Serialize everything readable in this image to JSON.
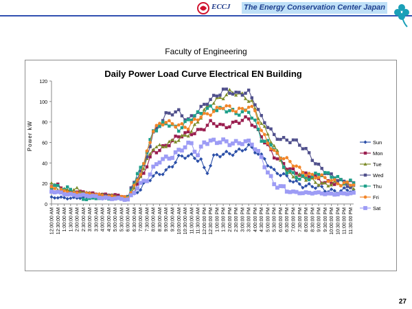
{
  "header": {
    "brand": "ECCJ",
    "organization": "The Energy Conservation Center Japan",
    "logo_icon": "eccj-logo-icon",
    "clover_icon": "clover-icon"
  },
  "slide": {
    "subtitle": "Faculty of Engineering",
    "page_number": "27"
  },
  "chart_data": {
    "type": "line",
    "title": "Daily Power Load Curve Electrical EN Building",
    "xlabel": "",
    "ylabel": "Power kW",
    "ylim": [
      0,
      120
    ],
    "yticks": [
      0,
      20,
      40,
      60,
      80,
      100,
      120
    ],
    "grid": false,
    "legend": "right",
    "x_interval_minutes": 15,
    "x_tick_labels": [
      "12:00:00 AM",
      "12:30:00 AM",
      "1:00:00 AM",
      "1:30:00 AM",
      "2:00:00 AM",
      "2:30:00 AM",
      "3:00:00 AM",
      "3:30:00 AM",
      "4:00:00 AM",
      "4:30:00 AM",
      "5:00:00 AM",
      "5:30:00 AM",
      "6:00:00 AM",
      "6:30:00 AM",
      "7:00:00 AM",
      "7:30:00 AM",
      "8:00:00 AM",
      "8:30:00 AM",
      "9:00:00 AM",
      "9:30:00 AM",
      "10:00:00 AM",
      "10:30:00 AM",
      "11:00:00 AM",
      "11:30:00 AM",
      "12:00:00 PM",
      "12:30:00 PM",
      "1:00:00 PM",
      "1:30:00 PM",
      "2:00:00 PM",
      "2:30:00 PM",
      "3:00:00 PM",
      "3:30:00 PM",
      "4:00:00 PM",
      "4:30:00 PM",
      "5:00:00 PM",
      "5:30:00 PM",
      "6:00:00 PM",
      "6:30:00 PM",
      "7:00:00 PM",
      "7:30:00 PM",
      "8:00:00 PM",
      "8:30:00 PM",
      "9:00:00 PM",
      "9:30:00 PM",
      "10:00:00 PM",
      "10:30:00 PM",
      "11:00:00 PM",
      "11:30:00 PM"
    ],
    "series": [
      {
        "name": "Sun",
        "color": "#2b4fa8",
        "marker": "diamond",
        "knots": [
          [
            0,
            6
          ],
          [
            24,
            6
          ],
          [
            27,
            12
          ],
          [
            30,
            22
          ],
          [
            36,
            33
          ],
          [
            40,
            45
          ],
          [
            44,
            46
          ],
          [
            47,
            44
          ],
          [
            48,
            35
          ],
          [
            49,
            32
          ],
          [
            51,
            45
          ],
          [
            56,
            50
          ],
          [
            62,
            55
          ],
          [
            67,
            45
          ],
          [
            70,
            32
          ],
          [
            74,
            25
          ],
          [
            80,
            18
          ],
          [
            86,
            14
          ],
          [
            96,
            12
          ]
        ]
      },
      {
        "name": "Mon",
        "color": "#9a1e4f",
        "marker": "square",
        "knots": [
          [
            0,
            18
          ],
          [
            3,
            17
          ],
          [
            4,
            13
          ],
          [
            24,
            7
          ],
          [
            26,
            14
          ],
          [
            29,
            30
          ],
          [
            32,
            50
          ],
          [
            36,
            58
          ],
          [
            40,
            65
          ],
          [
            44,
            70
          ],
          [
            47,
            73
          ],
          [
            50,
            78
          ],
          [
            54,
            76
          ],
          [
            58,
            80
          ],
          [
            62,
            82
          ],
          [
            66,
            68
          ],
          [
            70,
            46
          ],
          [
            74,
            36
          ],
          [
            80,
            28
          ],
          [
            86,
            22
          ],
          [
            96,
            20
          ]
        ]
      },
      {
        "name": "Tue",
        "color": "#7d8c2a",
        "marker": "triangle",
        "knots": [
          [
            0,
            19
          ],
          [
            4,
            14
          ],
          [
            24,
            6
          ],
          [
            26,
            14
          ],
          [
            29,
            34
          ],
          [
            32,
            56
          ],
          [
            36,
            58
          ],
          [
            40,
            62
          ],
          [
            44,
            72
          ],
          [
            48,
            90
          ],
          [
            52,
            102
          ],
          [
            56,
            110
          ],
          [
            60,
            105
          ],
          [
            63,
            100
          ],
          [
            66,
            80
          ],
          [
            70,
            55
          ],
          [
            74,
            32
          ],
          [
            80,
            24
          ],
          [
            86,
            20
          ],
          [
            96,
            18
          ]
        ]
      },
      {
        "name": "Wed",
        "color": "#50508c",
        "marker": "square",
        "knots": [
          [
            0,
            16
          ],
          [
            4,
            10
          ],
          [
            24,
            6
          ],
          [
            26,
            20
          ],
          [
            29,
            36
          ],
          [
            32,
            70
          ],
          [
            36,
            86
          ],
          [
            40,
            90
          ],
          [
            43,
            83
          ],
          [
            47,
            92
          ],
          [
            50,
            102
          ],
          [
            54,
            112
          ],
          [
            58,
            106
          ],
          [
            62,
            110
          ],
          [
            64,
            100
          ],
          [
            66,
            84
          ],
          [
            70,
            66
          ],
          [
            76,
            62
          ],
          [
            80,
            52
          ],
          [
            84,
            38
          ],
          [
            88,
            26
          ],
          [
            96,
            16
          ]
        ]
      },
      {
        "name": "Thu",
        "color": "#1fa08a",
        "marker": "square",
        "knots": [
          [
            0,
            19
          ],
          [
            4,
            14
          ],
          [
            7,
            12
          ],
          [
            10,
            5
          ],
          [
            24,
            6
          ],
          [
            26,
            20
          ],
          [
            29,
            42
          ],
          [
            32,
            72
          ],
          [
            36,
            78
          ],
          [
            40,
            74
          ],
          [
            43,
            82
          ],
          [
            47,
            88
          ],
          [
            50,
            95
          ],
          [
            54,
            92
          ],
          [
            58,
            88
          ],
          [
            62,
            92
          ],
          [
            64,
            80
          ],
          [
            66,
            62
          ],
          [
            70,
            56
          ],
          [
            74,
            32
          ],
          [
            78,
            24
          ],
          [
            84,
            30
          ],
          [
            96,
            20
          ]
        ]
      },
      {
        "name": "Fri",
        "color": "#f28528",
        "marker": "circle",
        "knots": [
          [
            0,
            15
          ],
          [
            4,
            12
          ],
          [
            24,
            6
          ],
          [
            26,
            16
          ],
          [
            29,
            40
          ],
          [
            32,
            72
          ],
          [
            36,
            80
          ],
          [
            40,
            78
          ],
          [
            43,
            74
          ],
          [
            47,
            86
          ],
          [
            50,
            90
          ],
          [
            54,
            94
          ],
          [
            58,
            92
          ],
          [
            62,
            95
          ],
          [
            64,
            90
          ],
          [
            66,
            70
          ],
          [
            70,
            52
          ],
          [
            74,
            42
          ],
          [
            78,
            34
          ],
          [
            82,
            28
          ],
          [
            86,
            24
          ],
          [
            96,
            18
          ]
        ]
      },
      {
        "name": "Sat",
        "color": "#9d9cf5",
        "marker": "square",
        "knots": [
          [
            0,
            12
          ],
          [
            4,
            10
          ],
          [
            24,
            4
          ],
          [
            25,
            8
          ],
          [
            27,
            18
          ],
          [
            30,
            24
          ],
          [
            34,
            42
          ],
          [
            38,
            48
          ],
          [
            42,
            55
          ],
          [
            44,
            58
          ],
          [
            46,
            48
          ],
          [
            48,
            62
          ],
          [
            52,
            60
          ],
          [
            56,
            60
          ],
          [
            60,
            61
          ],
          [
            63,
            58
          ],
          [
            66,
            45
          ],
          [
            70,
            20
          ],
          [
            74,
            12
          ],
          [
            86,
            10
          ],
          [
            96,
            10
          ]
        ]
      }
    ]
  }
}
